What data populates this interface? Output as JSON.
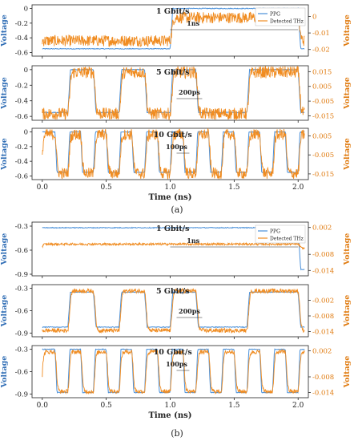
{
  "figure": {
    "panel_labels": [
      "(a)",
      "(b)"
    ],
    "colors": {
      "ppg": "#4a90d9",
      "thz": "#f08c21",
      "axis": "#222222",
      "left_label": "#2f6db5",
      "right_label": "#e07b10"
    }
  },
  "chart_data": [
    {
      "type": "line",
      "panel": "a",
      "title": "1 Gbit/s",
      "annotation": "1ns",
      "xlabel": "",
      "ylabel": "Voltage",
      "y2label": "Voltage",
      "ylim": [
        -0.65,
        0.05
      ],
      "yticks": [
        0.0,
        -0.2,
        -0.4,
        -0.6
      ],
      "y2lim": [
        -0.024,
        0.007
      ],
      "y2ticks": [
        0.0,
        -0.01,
        -0.02
      ],
      "xlim": [
        -0.08,
        2.08
      ],
      "bitrate": 1,
      "bits": [
        0,
        1,
        0,
        0,
        0,
        1,
        1,
        0,
        1,
        0,
        0
      ],
      "high": 0.0,
      "low": -0.55,
      "legend": [
        "PPG",
        "Detected THz"
      ],
      "series": [
        {
          "name": "PPG",
          "axis": "left"
        },
        {
          "name": "Detected THz",
          "axis": "right"
        }
      ]
    },
    {
      "type": "line",
      "panel": "a",
      "title": "5 Gbit/s",
      "annotation": "200ps",
      "xlabel": "",
      "ylabel": "Voltage",
      "y2label": "Voltage",
      "ylim": [
        -0.65,
        0.05
      ],
      "yticks": [
        0.0,
        -0.2,
        -0.4,
        -0.6
      ],
      "y2lim": [
        -0.018,
        0.019
      ],
      "y2ticks": [
        0.015,
        0.005,
        -0.005,
        -0.015
      ],
      "xlim": [
        -0.08,
        2.08
      ],
      "bitrate": 5,
      "bits": [
        0,
        1,
        0,
        1,
        0,
        1,
        0,
        0,
        1,
        1,
        0,
        1,
        0,
        0,
        1,
        0,
        1,
        0,
        1,
        0,
        0,
        1,
        0,
        1,
        1,
        0,
        1,
        0,
        0,
        1,
        0,
        1,
        0,
        1,
        0,
        1,
        0,
        1,
        0,
        0,
        1,
        0,
        1,
        0,
        0,
        1,
        0,
        1,
        0,
        1,
        0
      ],
      "high": 0.0,
      "low": -0.55,
      "series": [
        {
          "name": "PPG",
          "axis": "left"
        },
        {
          "name": "Detected THz",
          "axis": "right"
        }
      ]
    },
    {
      "type": "line",
      "panel": "a",
      "title": "10 Gbit/s",
      "annotation": "100ps",
      "xlabel": "Time (ns)",
      "ylabel": "Voltage",
      "y2label": "Voltage",
      "ylim": [
        -0.65,
        0.05
      ],
      "yticks": [
        0.0,
        -0.2,
        -0.4,
        -0.6
      ],
      "y2lim": [
        -0.018,
        0.009
      ],
      "y2ticks": [
        0.005,
        -0.005,
        -0.015
      ],
      "xlim": [
        -0.08,
        2.08
      ],
      "xticks": [
        "0.0",
        "0.5",
        "1.0",
        "1.5",
        "2.0"
      ],
      "bitrate": 10,
      "alternating": true,
      "high": 0.0,
      "low": -0.55,
      "series": [
        {
          "name": "PPG",
          "axis": "left"
        },
        {
          "name": "Detected THz",
          "axis": "right"
        }
      ]
    },
    {
      "type": "line",
      "panel": "b",
      "title": "1 Gbit/s",
      "annotation": "1ns",
      "xlabel": "",
      "ylabel": "Voltage",
      "y2label": "Voltage",
      "ylim": [
        -0.92,
        -0.25
      ],
      "yticks": [
        -0.3,
        -0.6,
        -0.9
      ],
      "y2lim": [
        -0.016,
        0.004
      ],
      "y2ticks": [
        0.002,
        -0.008,
        -0.014
      ],
      "xlim": [
        -0.08,
        2.08
      ],
      "bitrate": 1,
      "bits": [
        1,
        1,
        0,
        0,
        0,
        1,
        1,
        0,
        1,
        0,
        0
      ],
      "high": -0.32,
      "low": -0.84,
      "legend": [
        "PPG",
        "Detected THz"
      ],
      "series": [
        {
          "name": "PPG",
          "axis": "left"
        },
        {
          "name": "Detected THz",
          "axis": "right"
        }
      ]
    },
    {
      "type": "line",
      "panel": "b",
      "title": "5 Gbit/s",
      "annotation": "200ps",
      "xlabel": "",
      "ylabel": "Voltage",
      "y2label": "Voltage",
      "ylim": [
        -0.95,
        -0.25
      ],
      "yticks": [
        -0.3,
        -0.6,
        -0.9
      ],
      "y2lim": [
        -0.016,
        0.004
      ],
      "y2ticks": [
        -0.002,
        -0.008,
        -0.014
      ],
      "xlim": [
        -0.08,
        2.08
      ],
      "bitrate": 5,
      "bits": [
        0,
        1,
        0,
        1,
        0,
        1,
        0,
        0,
        1,
        1,
        0,
        1,
        0,
        0,
        1,
        0,
        1,
        0,
        1,
        0,
        0,
        1,
        0,
        1,
        1,
        0,
        1,
        0,
        0,
        1,
        0,
        1,
        0,
        1,
        0,
        1,
        0,
        1,
        0,
        0,
        1,
        0,
        1,
        0,
        0,
        1,
        0,
        1,
        0,
        1,
        0
      ],
      "high": -0.35,
      "low": -0.82,
      "series": [
        {
          "name": "PPG",
          "axis": "left"
        },
        {
          "name": "Detected THz",
          "axis": "right"
        }
      ]
    },
    {
      "type": "line",
      "panel": "b",
      "title": "10 Gbit/s",
      "annotation": "100ps",
      "xlabel": "Time (ns)",
      "ylabel": "Voltage",
      "y2label": "Voltage",
      "ylim": [
        -0.95,
        -0.25
      ],
      "yticks": [
        -0.3,
        -0.6,
        -0.9
      ],
      "y2lim": [
        -0.016,
        0.004
      ],
      "y2ticks": [
        0.002,
        -0.008,
        -0.014
      ],
      "xlim": [
        -0.08,
        2.08
      ],
      "xticks": [
        "0.0",
        "0.5",
        "1.0",
        "1.5",
        "2.0"
      ],
      "bitrate": 10,
      "alternating": true,
      "high": -0.3,
      "low": -0.88,
      "series": [
        {
          "name": "PPG",
          "axis": "left"
        },
        {
          "name": "Detected THz",
          "axis": "right"
        }
      ]
    }
  ]
}
